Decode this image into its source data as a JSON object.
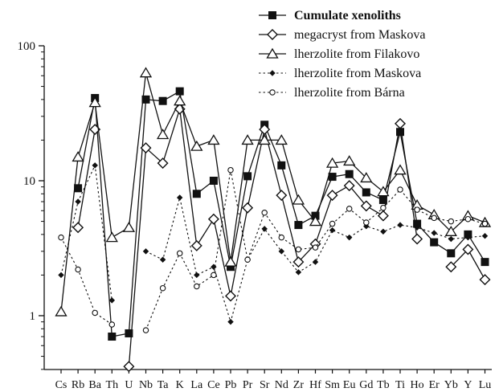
{
  "chart_data": {
    "type": "line",
    "yscale": "log",
    "ylim": [
      0.33,
      100
    ],
    "yticks": [
      1,
      10,
      100
    ],
    "ytick_labels": [
      "1",
      "10",
      "100"
    ],
    "grid": false,
    "legend_position": "top-right",
    "categories": [
      "Cs",
      "Rb",
      "Ba",
      "Th",
      "U",
      "Nb",
      "Ta",
      "K",
      "La",
      "Ce",
      "Pb",
      "Pr",
      "Sr",
      "Nd",
      "Zr",
      "Hf",
      "Sm",
      "Eu",
      "Gd",
      "Tb",
      "Ti",
      "Ho",
      "Er",
      "Yb",
      "Y",
      "Lu"
    ],
    "series": [
      {
        "name": "Cumulate xenoliths",
        "marker": "square-filled",
        "linestyle": "solid",
        "values": [
          null,
          8.8,
          41,
          0.7,
          0.74,
          40,
          39,
          46,
          8,
          10,
          2.3,
          10.8,
          26,
          13,
          4.7,
          5.5,
          10.7,
          11.2,
          8.2,
          7.2,
          23,
          4.8,
          3.5,
          2.9,
          4.0,
          2.5
        ]
      },
      {
        "name": "megacryst from Maskova",
        "marker": "diamond-open",
        "linestyle": "solid",
        "values": [
          null,
          4.5,
          24,
          null,
          0.42,
          17.5,
          13.5,
          34,
          3.3,
          5.2,
          1.4,
          6.3,
          24,
          7.8,
          2.5,
          3.4,
          7.8,
          9.2,
          6.5,
          5.5,
          26.5,
          3.7,
          null,
          2.3,
          3.1,
          1.85
        ]
      },
      {
        "name": "lherzolite from Filakovo",
        "marker": "triangle-open",
        "linestyle": "solid",
        "values": [
          1.07,
          15,
          38,
          3.8,
          4.5,
          63,
          22,
          39,
          18,
          20,
          2.5,
          20,
          20,
          20,
          7.2,
          5,
          13.5,
          14,
          10.5,
          8.3,
          12,
          6.6,
          5.6,
          4.2,
          5.5,
          4.9
        ]
      },
      {
        "name": "lherzolite from Maskova",
        "marker": "small-diamond-filled",
        "linestyle": "dotted",
        "values": [
          2.0,
          7.0,
          13.0,
          1.3,
          null,
          3.0,
          2.6,
          7.5,
          2.0,
          2.3,
          0.9,
          2.6,
          4.4,
          3.0,
          2.1,
          2.5,
          4.3,
          3.8,
          4.6,
          4.2,
          4.7,
          4.5,
          4.1,
          3.7,
          3.8,
          3.9
        ]
      },
      {
        "name": "lherzolite from Bárna",
        "marker": "circle-open",
        "linestyle": "dotted",
        "values": [
          3.8,
          2.2,
          1.05,
          0.86,
          null,
          0.78,
          1.6,
          2.9,
          1.65,
          2.0,
          12,
          2.6,
          5.8,
          3.8,
          3.1,
          3.2,
          4.8,
          6.2,
          4.9,
          6.3,
          8.6,
          6.1,
          5.3,
          5.0,
          5.2,
          4.8
        ]
      }
    ]
  }
}
